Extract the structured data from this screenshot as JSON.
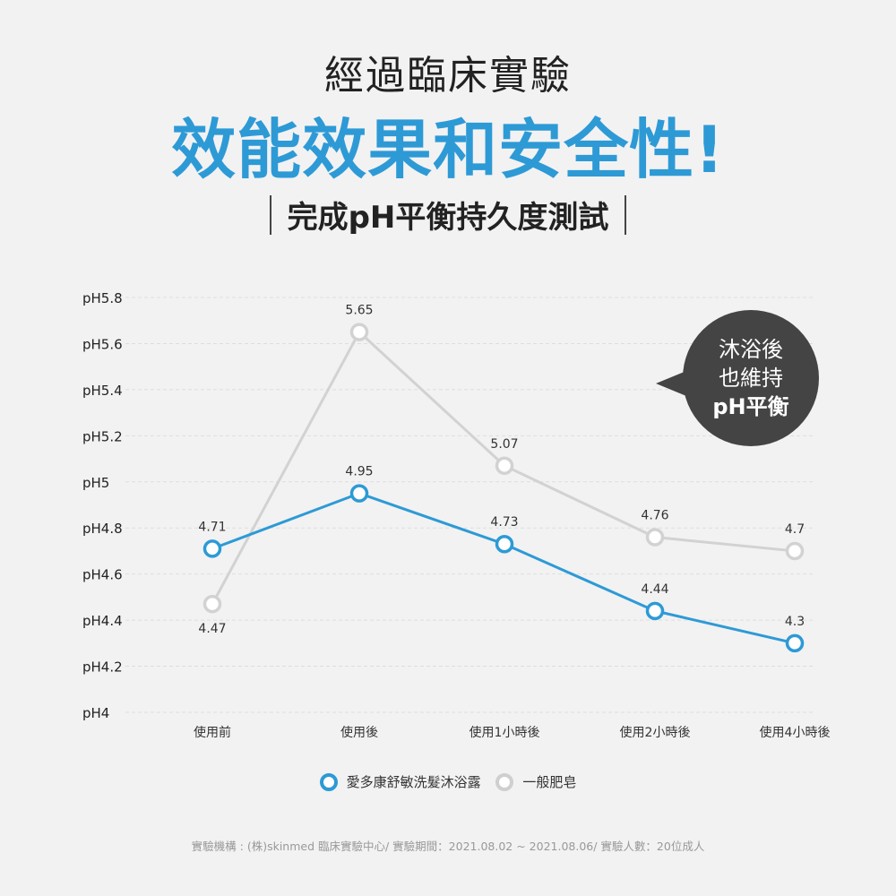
{
  "header": {
    "title_top": "經過臨床實驗",
    "title_main": "效能效果和安全性!",
    "subtitle": "完成pH平衡持久度測試"
  },
  "callout": {
    "line1": "沐浴後",
    "line2": "也維持",
    "line3": "pH平衡"
  },
  "legend": {
    "series1": "愛多康舒敏洗髮沐浴露",
    "series2": "一般肥皂"
  },
  "footnote": "實驗機構 : (株)skinmed 臨床實驗中心/ 實驗期間：2021.08.02 ~ 2021.08.06/ 實驗人數：20位成人",
  "colors": {
    "accent": "#2d9ad6",
    "gray_series": "#d2d2d2",
    "grid": "#dddddd",
    "background": "#f2f2f2",
    "callout_bg": "#444444"
  },
  "chart_data": {
    "type": "line",
    "categories": [
      "使用前",
      "使用後",
      "使用1小時後",
      "使用2小時後",
      "使用4小時後"
    ],
    "y_tick_labels": [
      "pH5.8",
      "pH5.6",
      "pH5.4",
      "pH5.2",
      "pH5",
      "pH4.8",
      "pH4.6",
      "pH4.4",
      "pH4.2",
      "pH4"
    ],
    "ylim": [
      4.0,
      5.8
    ],
    "grid": true,
    "legend_position": "bottom-center",
    "series": [
      {
        "name": "愛多康舒敏洗髮沐浴露",
        "values": [
          4.71,
          4.95,
          4.73,
          4.44,
          4.3
        ],
        "labels": [
          "4.71",
          "4.95",
          "4.73",
          "4.44",
          "4.3"
        ]
      },
      {
        "name": "一般肥皂",
        "values": [
          4.47,
          5.65,
          5.07,
          4.76,
          4.7
        ],
        "labels": [
          "4.47",
          "5.65",
          "5.07",
          "4.76",
          "4.7"
        ]
      }
    ]
  }
}
